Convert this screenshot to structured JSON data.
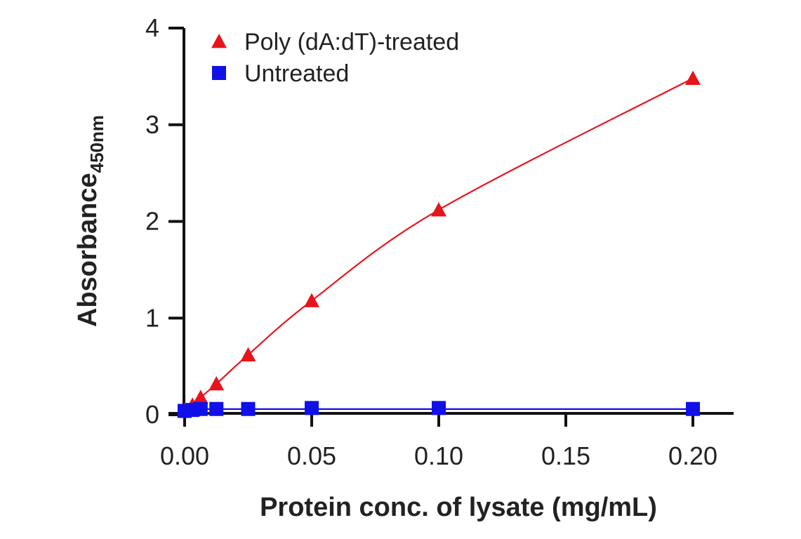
{
  "chart_data": {
    "type": "scatter",
    "xlabel": "Protein conc. of lysate (mg/mL)",
    "ylabel": "Absorbance",
    "ylabel_subscript": "450nm",
    "xlim": [
      0,
      0.2
    ],
    "ylim": [
      0,
      4
    ],
    "xticks": [
      "0.00",
      "0.05",
      "0.10",
      "0.15",
      "0.20"
    ],
    "yticks": [
      "0",
      "1",
      "2",
      "3",
      "4"
    ],
    "grid": false,
    "legend_position": "top-left",
    "series": [
      {
        "name": "Poly (dA:dT)-treated",
        "marker": "triangle",
        "color": "#e8141b",
        "x": [
          0,
          0.0031,
          0.0063,
          0.0125,
          0.025,
          0.05,
          0.1,
          0.2
        ],
        "y": [
          0.05,
          0.1,
          0.18,
          0.32,
          0.62,
          1.18,
          2.12,
          3.48
        ]
      },
      {
        "name": "Untreated",
        "marker": "square",
        "color": "#1010e8",
        "x": [
          0,
          0.0031,
          0.0063,
          0.0125,
          0.025,
          0.05,
          0.1,
          0.2
        ],
        "y": [
          0.04,
          0.05,
          0.06,
          0.06,
          0.06,
          0.07,
          0.07,
          0.06
        ]
      }
    ]
  }
}
